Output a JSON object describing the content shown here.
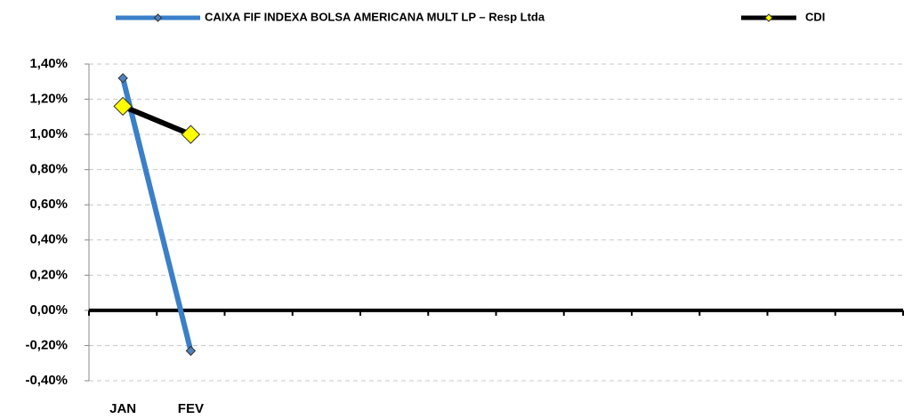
{
  "chart_data": {
    "type": "line",
    "categories": [
      "JAN",
      "FEV",
      null,
      null,
      null,
      null,
      null,
      null,
      null,
      null,
      null,
      null
    ],
    "series": [
      {
        "name": "CAIXA FIF INDEXA BOLSA AMERICANA MULT LP – Resp Ltda",
        "color": "#3a7fc8",
        "marker_color": "#4f81bd",
        "values": [
          1.32,
          -0.23,
          null,
          null,
          null,
          null,
          null,
          null,
          null,
          null,
          null,
          null
        ]
      },
      {
        "name": "CDI",
        "color": "#000000",
        "marker_color": "#ffff00",
        "values": [
          1.16,
          1.0,
          null,
          null,
          null,
          null,
          null,
          null,
          null,
          null,
          null,
          null
        ]
      }
    ],
    "ylim": [
      -0.4,
      1.4
    ],
    "yticks": [
      {
        "value": -0.4,
        "label": "-0,40%"
      },
      {
        "value": -0.2,
        "label": "-0,20%"
      },
      {
        "value": 0,
        "label": "0,00%"
      },
      {
        "value": 0.2,
        "label": "0,20%"
      },
      {
        "value": 0.4,
        "label": "0,40%"
      },
      {
        "value": 0.6,
        "label": "0,60%"
      },
      {
        "value": 0.8,
        "label": "0,80%"
      },
      {
        "value": 1.0,
        "label": "1,00%"
      },
      {
        "value": 1.2,
        "label": "1,20%"
      },
      {
        "value": 1.4,
        "label": "1,40%"
      }
    ],
    "grid": true,
    "legend": "top"
  }
}
